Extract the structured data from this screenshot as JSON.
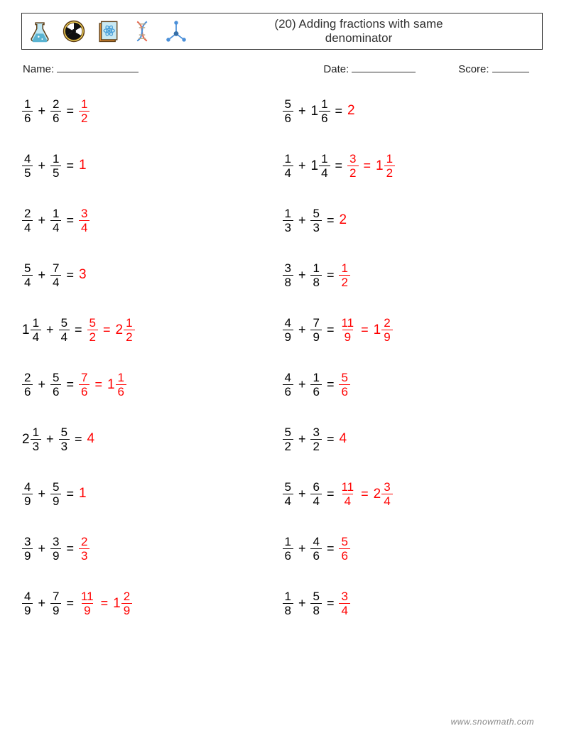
{
  "header": {
    "title_line1": "(20) Adding fractions with same",
    "title_line2": "denominator",
    "icon_colors": {
      "beaker_body": "#bfe8f5",
      "beaker_liquid": "#5ab3d1",
      "beaker_outline": "#5f3f17",
      "radio_ring": "#e8c231",
      "radio_black": "#111",
      "radio_outline": "#5f3f17",
      "book_cover": "#e48f33",
      "book_pages": "#c9e9f3",
      "book_atom": "#4a9fd8",
      "dna_a": "#e6634a",
      "dna_b": "#4a8fd8",
      "dna_rung": "#b9a585",
      "mol_line": "#4a8fd8",
      "mol_node": "#356fa8"
    }
  },
  "labels": {
    "name": "Name:",
    "date": "Date:",
    "score": "Score:"
  },
  "blank_widths": {
    "name": 115,
    "date": 90,
    "score": 52
  },
  "answer_color": "#ff0000",
  "footer": "www.snowmath.com",
  "columns": [
    [
      {
        "a": {
          "n": 1,
          "d": 6
        },
        "b": {
          "n": 2,
          "d": 6
        },
        "results": [
          {
            "n": 1,
            "d": 2
          }
        ]
      },
      {
        "a": {
          "n": 4,
          "d": 5
        },
        "b": {
          "n": 1,
          "d": 5
        },
        "results": [
          {
            "int": 1
          }
        ]
      },
      {
        "a": {
          "n": 2,
          "d": 4
        },
        "b": {
          "n": 1,
          "d": 4
        },
        "results": [
          {
            "n": 3,
            "d": 4
          }
        ]
      },
      {
        "a": {
          "n": 5,
          "d": 4
        },
        "b": {
          "n": 7,
          "d": 4
        },
        "results": [
          {
            "int": 3
          }
        ]
      },
      {
        "a": {
          "w": 1,
          "n": 1,
          "d": 4
        },
        "b": {
          "n": 5,
          "d": 4
        },
        "results": [
          {
            "n": 5,
            "d": 2
          },
          {
            "w": 2,
            "n": 1,
            "d": 2
          }
        ]
      },
      {
        "a": {
          "n": 2,
          "d": 6
        },
        "b": {
          "n": 5,
          "d": 6
        },
        "results": [
          {
            "n": 7,
            "d": 6
          },
          {
            "w": 1,
            "n": 1,
            "d": 6
          }
        ]
      },
      {
        "a": {
          "w": 2,
          "n": 1,
          "d": 3
        },
        "b": {
          "n": 5,
          "d": 3
        },
        "results": [
          {
            "int": 4
          }
        ]
      },
      {
        "a": {
          "n": 4,
          "d": 9
        },
        "b": {
          "n": 5,
          "d": 9
        },
        "results": [
          {
            "int": 1
          }
        ]
      },
      {
        "a": {
          "n": 3,
          "d": 9
        },
        "b": {
          "n": 3,
          "d": 9
        },
        "results": [
          {
            "n": 2,
            "d": 3
          }
        ]
      },
      {
        "a": {
          "n": 4,
          "d": 9
        },
        "b": {
          "n": 7,
          "d": 9
        },
        "results": [
          {
            "n": 11,
            "d": 9
          },
          {
            "w": 1,
            "n": 2,
            "d": 9
          }
        ]
      }
    ],
    [
      {
        "a": {
          "n": 5,
          "d": 6
        },
        "b": {
          "w": 1,
          "n": 1,
          "d": 6
        },
        "results": [
          {
            "int": 2
          }
        ]
      },
      {
        "a": {
          "n": 1,
          "d": 4
        },
        "b": {
          "w": 1,
          "n": 1,
          "d": 4
        },
        "results": [
          {
            "n": 3,
            "d": 2
          },
          {
            "w": 1,
            "n": 1,
            "d": 2
          }
        ]
      },
      {
        "a": {
          "n": 1,
          "d": 3
        },
        "b": {
          "n": 5,
          "d": 3
        },
        "results": [
          {
            "int": 2
          }
        ]
      },
      {
        "a": {
          "n": 3,
          "d": 8
        },
        "b": {
          "n": 1,
          "d": 8
        },
        "results": [
          {
            "n": 1,
            "d": 2
          }
        ]
      },
      {
        "a": {
          "n": 4,
          "d": 9
        },
        "b": {
          "n": 7,
          "d": 9
        },
        "results": [
          {
            "n": 11,
            "d": 9
          },
          {
            "w": 1,
            "n": 2,
            "d": 9
          }
        ]
      },
      {
        "a": {
          "n": 4,
          "d": 6
        },
        "b": {
          "n": 1,
          "d": 6
        },
        "results": [
          {
            "n": 5,
            "d": 6
          }
        ]
      },
      {
        "a": {
          "n": 5,
          "d": 2
        },
        "b": {
          "n": 3,
          "d": 2
        },
        "results": [
          {
            "int": 4
          }
        ]
      },
      {
        "a": {
          "n": 5,
          "d": 4
        },
        "b": {
          "n": 6,
          "d": 4
        },
        "results": [
          {
            "n": 11,
            "d": 4
          },
          {
            "w": 2,
            "n": 3,
            "d": 4
          }
        ]
      },
      {
        "a": {
          "n": 1,
          "d": 6
        },
        "b": {
          "n": 4,
          "d": 6
        },
        "results": [
          {
            "n": 5,
            "d": 6
          }
        ]
      },
      {
        "a": {
          "n": 1,
          "d": 8
        },
        "b": {
          "n": 5,
          "d": 8
        },
        "results": [
          {
            "n": 3,
            "d": 4
          }
        ]
      }
    ]
  ]
}
